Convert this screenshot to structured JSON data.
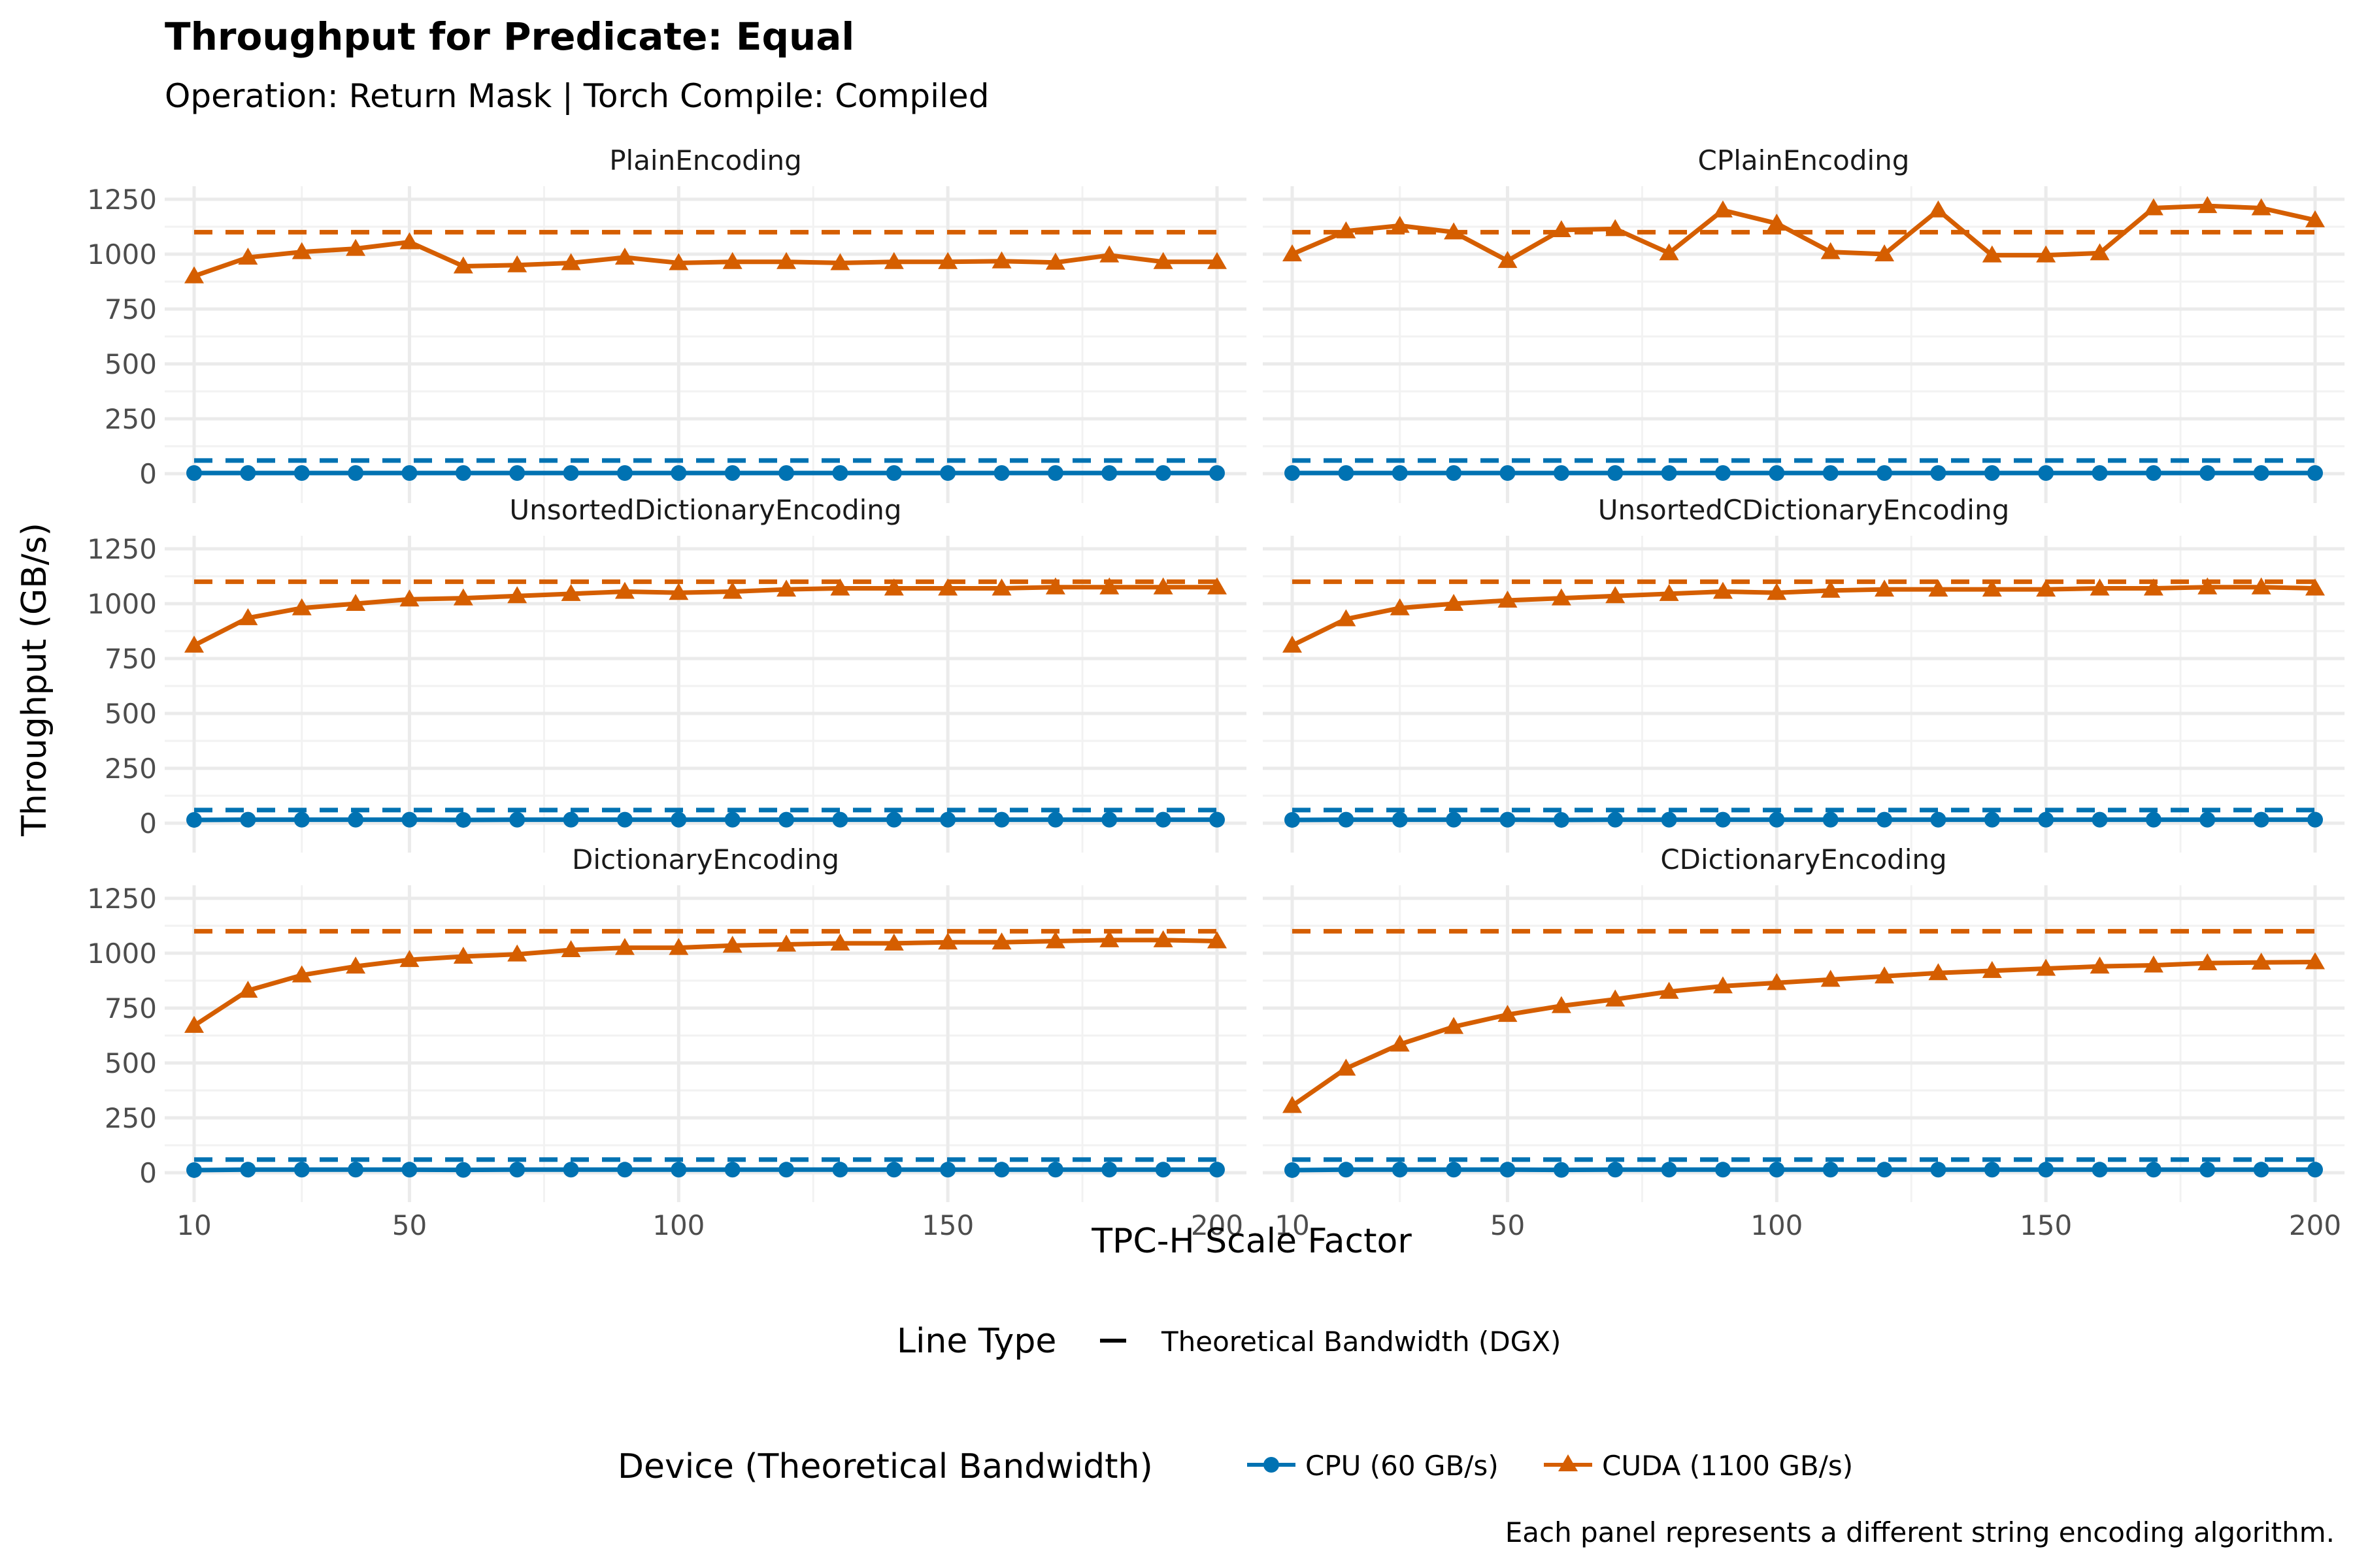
{
  "chart": {
    "title": "Throughput for Predicate: Equal",
    "subtitle": "Operation: Return Mask | Torch Compile: Compiled",
    "xlabel": "TPC-H Scale Factor",
    "ylabel": "Throughput (GB/s)",
    "caption": "Each panel represents a different string encoding algorithm."
  },
  "legend": {
    "linetype_title": "Line Type",
    "linetype_item": "Theoretical Bandwidth (DGX)",
    "device_title": "Device (Theoretical Bandwidth)",
    "cpu_label": "CPU (60 GB/s)",
    "cuda_label": "CUDA (1100 GB/s)"
  },
  "chart_data": {
    "type": "line",
    "facets": [
      "PlainEncoding",
      "CPlainEncoding",
      "UnsortedDictionaryEncoding",
      "UnsortedCDictionaryEncoding",
      "DictionaryEncoding",
      "CDictionaryEncoding"
    ],
    "x": [
      10,
      20,
      30,
      40,
      50,
      60,
      70,
      80,
      90,
      100,
      110,
      120,
      130,
      140,
      150,
      160,
      170,
      180,
      190,
      200
    ],
    "xlim": [
      10,
      200
    ],
    "ylim": [
      0,
      1250
    ],
    "x_ticks": [
      10,
      50,
      100,
      150,
      200
    ],
    "y_ticks": [
      0,
      250,
      500,
      750,
      1000,
      1250
    ],
    "grid": true,
    "legend_position": "bottom",
    "colors": {
      "CPU": "#0072B2",
      "CUDA": "#D55E00"
    },
    "theoretical_bandwidth": {
      "CPU": 60,
      "CUDA": 1100
    },
    "series": {
      "PlainEncoding": {
        "CUDA": [
          900,
          985,
          1010,
          1025,
          1055,
          945,
          950,
          960,
          985,
          960,
          965,
          965,
          960,
          965,
          965,
          968,
          962,
          995,
          965,
          965
        ],
        "CPU": [
          3,
          3,
          3,
          3,
          3,
          3,
          3,
          3,
          3,
          3,
          3,
          3,
          3,
          3,
          3,
          3,
          3,
          3,
          3,
          3
        ]
      },
      "CPlainEncoding": {
        "CUDA": [
          1000,
          1105,
          1130,
          1100,
          970,
          1110,
          1115,
          1005,
          1200,
          1140,
          1010,
          1000,
          1200,
          995,
          995,
          1005,
          1210,
          1220,
          1210,
          1155
        ],
        "CPU": [
          3,
          3,
          3,
          3,
          3,
          3,
          3,
          3,
          3,
          3,
          3,
          3,
          3,
          3,
          3,
          3,
          3,
          3,
          3,
          3
        ]
      },
      "UnsortedDictionaryEncoding": {
        "CUDA": [
          810,
          935,
          980,
          1000,
          1020,
          1025,
          1035,
          1045,
          1055,
          1050,
          1055,
          1065,
          1070,
          1070,
          1070,
          1070,
          1075,
          1075,
          1075,
          1075
        ],
        "CPU": [
          15,
          16,
          16,
          16,
          16,
          15,
          16,
          16,
          16,
          16,
          16,
          16,
          16,
          16,
          16,
          16,
          16,
          16,
          16,
          16
        ]
      },
      "UnsortedCDictionaryEncoding": {
        "CUDA": [
          810,
          930,
          980,
          1000,
          1015,
          1025,
          1035,
          1045,
          1055,
          1050,
          1060,
          1065,
          1065,
          1065,
          1065,
          1070,
          1070,
          1075,
          1075,
          1070
        ],
        "CPU": [
          15,
          16,
          16,
          16,
          16,
          15,
          16,
          16,
          16,
          16,
          16,
          16,
          16,
          16,
          16,
          16,
          16,
          16,
          16,
          16
        ]
      },
      "DictionaryEncoding": {
        "CUDA": [
          670,
          830,
          900,
          940,
          970,
          985,
          995,
          1015,
          1025,
          1025,
          1035,
          1040,
          1045,
          1045,
          1050,
          1050,
          1055,
          1060,
          1060,
          1055
        ],
        "CPU": [
          12,
          14,
          14,
          14,
          14,
          13,
          14,
          14,
          14,
          14,
          14,
          14,
          14,
          14,
          14,
          14,
          14,
          14,
          14,
          14
        ]
      },
      "CDictionaryEncoding": {
        "CUDA": [
          305,
          475,
          585,
          665,
          720,
          760,
          790,
          825,
          850,
          865,
          880,
          895,
          910,
          920,
          930,
          940,
          945,
          955,
          958,
          960
        ],
        "CPU": [
          12,
          14,
          14,
          14,
          14,
          13,
          14,
          14,
          14,
          14,
          14,
          14,
          14,
          14,
          14,
          14,
          14,
          14,
          14,
          14
        ]
      }
    }
  }
}
